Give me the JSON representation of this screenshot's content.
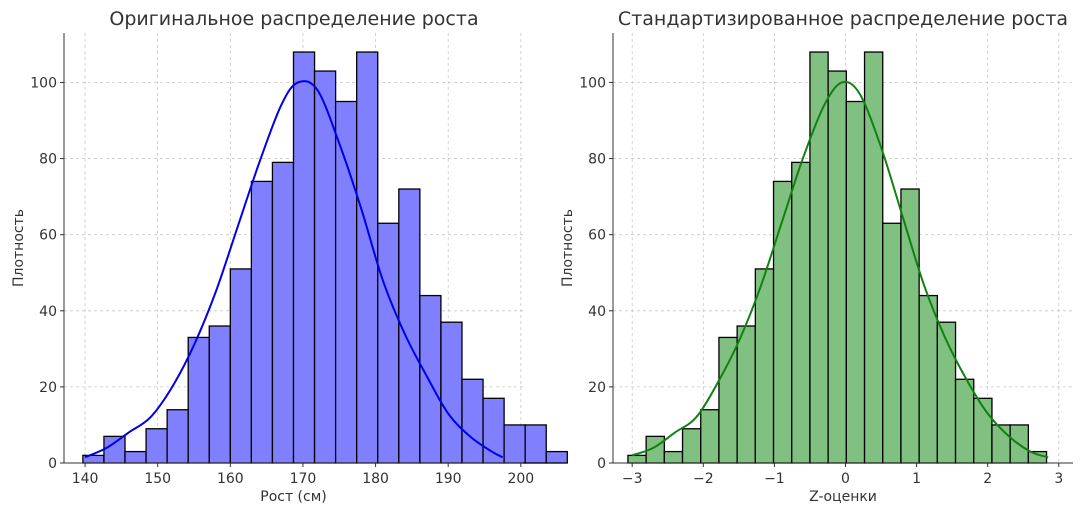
{
  "chart_data": [
    {
      "type": "bar",
      "subtype": "histogram_with_kde",
      "title": "Оригинальное распределение роста",
      "xlabel": "Рост (см)",
      "ylabel": "Плотность",
      "xlim": [
        137.1,
        200.3
      ],
      "ylim": [
        0,
        113
      ],
      "xticks": [
        "140",
        "150",
        "160",
        "170",
        "180",
        "190",
        "200"
      ],
      "yticks": [
        "0",
        "20",
        "40",
        "60",
        "80",
        "100"
      ],
      "grid": true,
      "bar_color": "#8080ff",
      "edge_color": "#000000",
      "kde_color": "#0000e6",
      "bin_start": 139.7,
      "bin_width": 2.9,
      "counts": [
        2,
        7,
        3,
        9,
        14,
        33,
        36,
        51,
        74,
        79,
        108,
        103,
        95,
        108,
        63,
        72,
        44,
        37,
        22,
        17,
        10,
        10,
        3
      ],
      "kde": {
        "x": [
          140,
          143,
          146,
          149,
          152,
          155,
          158,
          161,
          164,
          167,
          169.3,
          172,
          175,
          178,
          181,
          184,
          187,
          190,
          193,
          196,
          197.5
        ],
        "y": [
          1.5,
          4,
          8,
          12,
          20,
          31,
          45,
          62,
          79,
          94,
          100,
          98,
          84,
          67,
          48,
          34,
          23,
          13,
          7,
          3,
          1.5
        ]
      }
    },
    {
      "type": "bar",
      "subtype": "histogram_with_kde",
      "title": "Стандартизированное распределение роста",
      "xlabel": "Z-оценки",
      "ylabel": "Плотность",
      "xlim": [
        -3.27,
        3.2
      ],
      "ylim": [
        0,
        113
      ],
      "xticks": [
        "−3",
        "−2",
        "−1",
        "0",
        "1",
        "2",
        "3"
      ],
      "yticks": [
        "0",
        "20",
        "40",
        "60",
        "80",
        "100"
      ],
      "grid": true,
      "bar_color": "#80c080",
      "edge_color": "#000000",
      "kde_color": "#138013",
      "bin_start": -3.06,
      "bin_width": 0.256,
      "counts": [
        2,
        7,
        3,
        9,
        14,
        33,
        36,
        51,
        74,
        79,
        108,
        103,
        95,
        108,
        63,
        72,
        44,
        37,
        22,
        17,
        10,
        10,
        3
      ],
      "kde": {
        "x": [
          -3.0,
          -2.7,
          -2.4,
          -2.1,
          -1.8,
          -1.5,
          -1.2,
          -0.9,
          -0.6,
          -0.3,
          -0.05,
          0.2,
          0.5,
          0.8,
          1.1,
          1.4,
          1.7,
          2.0,
          2.3,
          2.6,
          2.85
        ],
        "y": [
          2,
          4,
          8,
          12,
          21,
          32,
          46,
          63,
          80,
          94,
          100,
          97,
          83,
          65,
          47,
          33,
          22,
          13,
          7,
          3,
          1.5
        ]
      }
    }
  ]
}
